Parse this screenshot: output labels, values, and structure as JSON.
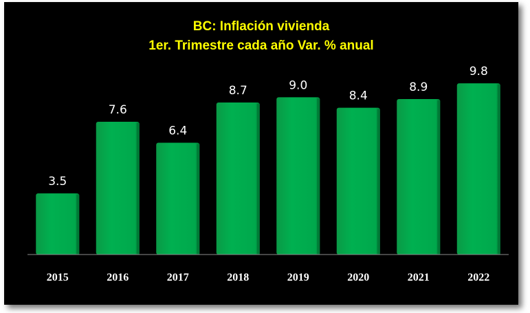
{
  "chart_data": {
    "type": "bar",
    "title_lines": [
      "BC: Inflación vivienda",
      "1er. Trimestre cada año Var. % anual"
    ],
    "categories": [
      "2015",
      "2016",
      "2017",
      "2018",
      "2019",
      "2020",
      "2021",
      "2022"
    ],
    "values": [
      3.5,
      7.6,
      6.4,
      8.7,
      9.0,
      8.4,
      8.9,
      9.8
    ],
    "value_labels": [
      "3.5",
      "7.6",
      "6.4",
      "8.7",
      "9.0",
      "8.4",
      "8.9",
      "9.8"
    ],
    "xlabel": "",
    "ylabel": "",
    "ylim": [
      0,
      10
    ],
    "grid": false,
    "legend": "none",
    "colors": {
      "background": "#000000",
      "bar": "#00b050",
      "bar_side": "#007a36",
      "title": "#ffff00",
      "labels": "#ffffff",
      "axis": "#8c8c8c"
    }
  }
}
